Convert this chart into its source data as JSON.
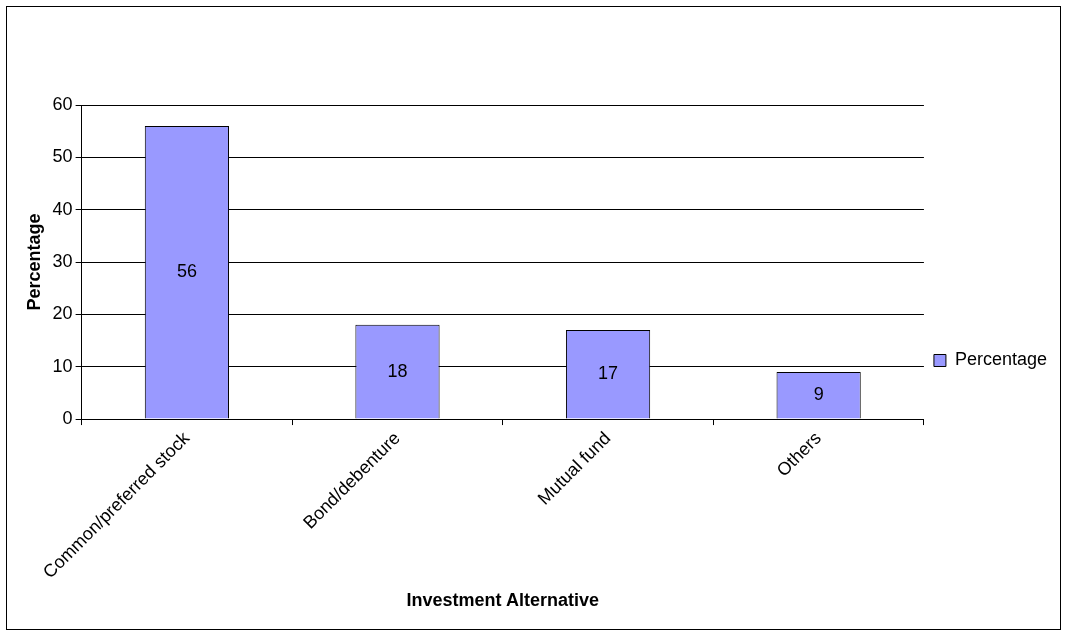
{
  "chart_data": {
    "type": "bar",
    "xlabel": "Investment Alternative",
    "ylabel": "Percentage",
    "categories": [
      "Common/preferred stock",
      "Bond/debenture",
      "Mutual fund",
      "Others"
    ],
    "series": [
      {
        "name": "Percentage",
        "color": "#9999ff",
        "values": [
          56,
          18,
          17,
          9
        ]
      }
    ],
    "ylim": [
      0,
      60
    ],
    "yticks": [
      0,
      10,
      20,
      30,
      40,
      50,
      60
    ],
    "grid": "y",
    "legend": "right",
    "data_labels": true
  }
}
